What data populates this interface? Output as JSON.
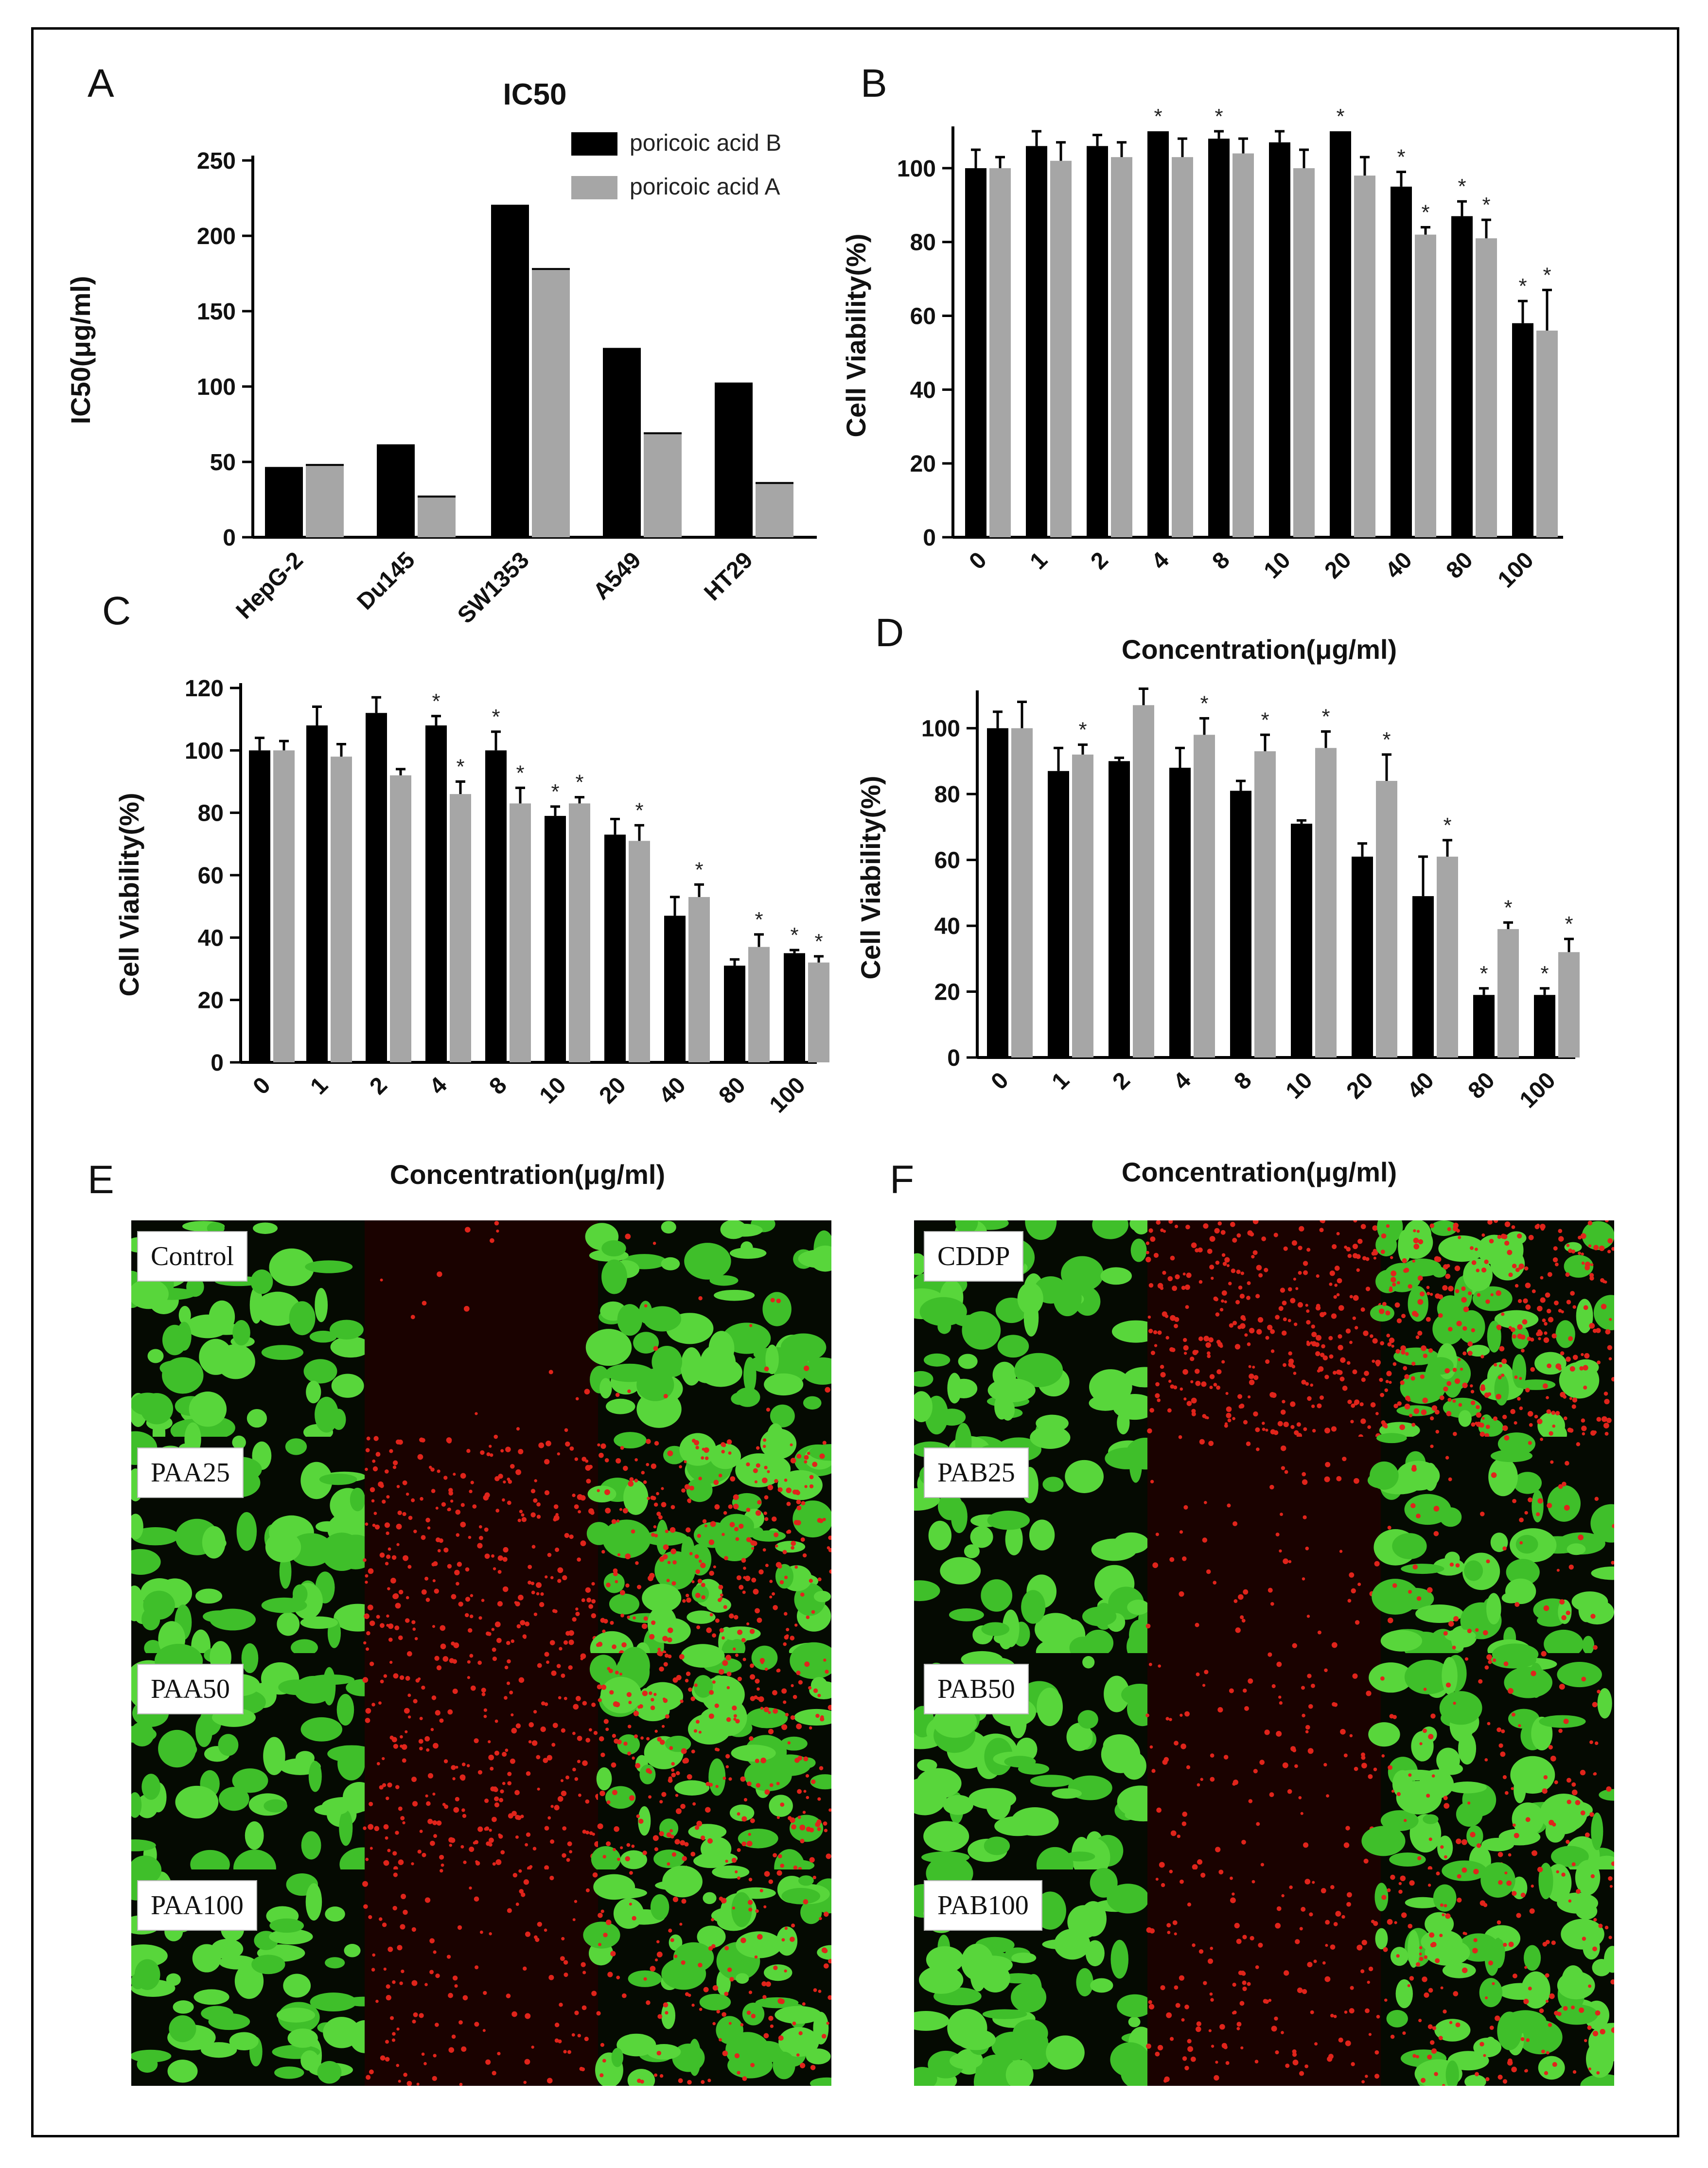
{
  "panels": {
    "A": "A",
    "B": "B",
    "C": "C",
    "D": "D",
    "E": "E",
    "F": "F"
  },
  "chart_data": [
    {
      "panel": "A",
      "type": "bar",
      "title": "IC50",
      "ylabel": "IC50(μg/ml)",
      "xlabel": "",
      "categories": [
        "HepG-2",
        "Du145",
        "SW1353",
        "A549",
        "HT29"
      ],
      "series": [
        {
          "name": "poricoic acid B",
          "color": "#000000",
          "values": [
            46,
            61,
            220,
            125,
            102
          ]
        },
        {
          "name": "poricoic acid A",
          "color": "#a6a6a6",
          "values": [
            48,
            27,
            178,
            69,
            36
          ]
        }
      ],
      "ylim": [
        0,
        250
      ],
      "yticks": [
        "0",
        "50",
        "100",
        "150",
        "200",
        "250"
      ],
      "legend_position": "top-right"
    },
    {
      "panel": "B",
      "type": "bar",
      "title": "",
      "ylabel": "Cell Viability(%)",
      "xlabel": "Concentration(μg/ml)",
      "categories": [
        "0",
        "1",
        "2",
        "4",
        "8",
        "10",
        "20",
        "40",
        "80",
        "100"
      ],
      "series": [
        {
          "color": "#000000",
          "values": [
            100,
            106,
            106,
            110,
            108,
            107,
            110,
            95,
            87,
            58
          ],
          "errors": [
            5,
            4,
            3,
            0,
            2,
            3,
            0,
            4,
            4,
            6
          ],
          "significant": [
            false,
            false,
            false,
            true,
            true,
            false,
            true,
            true,
            true,
            true
          ]
        },
        {
          "color": "#a6a6a6",
          "values": [
            100,
            102,
            103,
            103,
            104,
            100,
            98,
            82,
            81,
            56
          ],
          "errors": [
            3,
            5,
            4,
            5,
            4,
            5,
            5,
            2,
            5,
            11
          ],
          "significant": [
            false,
            false,
            false,
            false,
            false,
            false,
            false,
            true,
            true,
            true
          ]
        }
      ],
      "ylim": [
        0,
        110
      ],
      "yticks": [
        "0",
        "20",
        "40",
        "60",
        "80",
        "100"
      ],
      "significance_marker": "*"
    },
    {
      "panel": "C",
      "type": "bar",
      "title": "",
      "ylabel": "Cell Viability(%)",
      "xlabel": "Concentration(μg/ml)",
      "categories": [
        "0",
        "1",
        "2",
        "4",
        "8",
        "10",
        "20",
        "40",
        "80",
        "100"
      ],
      "series": [
        {
          "color": "#000000",
          "values": [
            100,
            108,
            112,
            108,
            100,
            79,
            73,
            47,
            31,
            35
          ],
          "errors": [
            4,
            6,
            5,
            3,
            6,
            3,
            5,
            6,
            2,
            1
          ],
          "significant": [
            false,
            false,
            false,
            true,
            true,
            true,
            false,
            false,
            false,
            true
          ]
        },
        {
          "color": "#a6a6a6",
          "values": [
            100,
            98,
            92,
            86,
            83,
            83,
            71,
            53,
            37,
            32
          ],
          "errors": [
            3,
            4,
            2,
            4,
            5,
            2,
            5,
            4,
            4,
            2
          ],
          "significant": [
            false,
            false,
            false,
            true,
            true,
            true,
            true,
            true,
            true,
            true
          ]
        }
      ],
      "ylim": [
        0,
        120
      ],
      "yticks": [
        "0",
        "20",
        "40",
        "60",
        "80",
        "100",
        "120"
      ],
      "significance_marker": "*"
    },
    {
      "panel": "D",
      "type": "bar",
      "title": "",
      "ylabel": "Cell Viability(%)",
      "xlabel": "Concentration(μg/ml)",
      "categories": [
        "0",
        "1",
        "2",
        "4",
        "8",
        "10",
        "20",
        "40",
        "80",
        "100"
      ],
      "series": [
        {
          "color": "#000000",
          "values": [
            100,
            87,
            90,
            88,
            81,
            71,
            61,
            49,
            19,
            19
          ],
          "errors": [
            5,
            7,
            1,
            6,
            3,
            1,
            4,
            12,
            2,
            2
          ],
          "significant": [
            false,
            false,
            false,
            false,
            false,
            false,
            false,
            false,
            true,
            true
          ]
        },
        {
          "color": "#a6a6a6",
          "values": [
            100,
            92,
            107,
            98,
            93,
            94,
            84,
            61,
            39,
            32
          ],
          "errors": [
            8,
            3,
            5,
            5,
            5,
            5,
            8,
            5,
            2,
            4
          ],
          "significant": [
            false,
            true,
            false,
            true,
            true,
            true,
            true,
            true,
            true,
            true
          ]
        }
      ],
      "ylim": [
        0,
        110
      ],
      "yticks": [
        "0",
        "20",
        "40",
        "60",
        "80",
        "100"
      ],
      "significance_marker": "*"
    }
  ],
  "micrographs": {
    "E": {
      "labels": [
        "Control",
        "PAA25",
        "PAA50",
        "PAA100"
      ]
    },
    "F": {
      "labels": [
        "CDDP",
        "PAB25",
        "PAB50",
        "PAB100"
      ]
    }
  }
}
